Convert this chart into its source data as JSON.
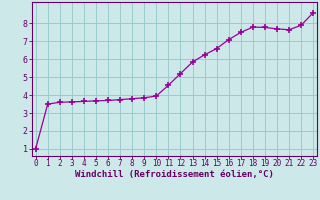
{
  "x": [
    0,
    1,
    2,
    3,
    4,
    5,
    6,
    7,
    8,
    9,
    10,
    11,
    12,
    13,
    14,
    15,
    16,
    17,
    18,
    19,
    20,
    21,
    22,
    23
  ],
  "y": [
    1.0,
    3.5,
    3.6,
    3.62,
    3.65,
    3.68,
    3.7,
    3.75,
    3.8,
    3.85,
    3.95,
    4.55,
    5.2,
    5.85,
    6.25,
    6.6,
    7.1,
    7.5,
    7.8,
    7.78,
    7.7,
    7.65,
    7.9,
    8.6
  ],
  "line_color": "#990099",
  "marker": "+",
  "marker_size": 4,
  "marker_lw": 1.2,
  "line_width": 0.9,
  "bg_color": "#cce8e8",
  "grid_color": "#99cccc",
  "xlabel": "Windchill (Refroidissement éolien,°C)",
  "xlabel_fontsize": 6.5,
  "ylabel_ticks": [
    1,
    2,
    3,
    4,
    5,
    6,
    7,
    8
  ],
  "xtick_labels": [
    "0",
    "1",
    "2",
    "3",
    "4",
    "5",
    "6",
    "7",
    "8",
    "9",
    "10",
    "11",
    "12",
    "13",
    "14",
    "15",
    "16",
    "17",
    "18",
    "19",
    "20",
    "21",
    "22",
    "23"
  ],
  "xlim": [
    -0.3,
    23.3
  ],
  "ylim": [
    0.6,
    9.2
  ],
  "tick_fontsize": 5.5,
  "ytick_fontsize": 6.0,
  "tick_color": "#660066",
  "axis_color": "#660066",
  "label_color": "#660066"
}
